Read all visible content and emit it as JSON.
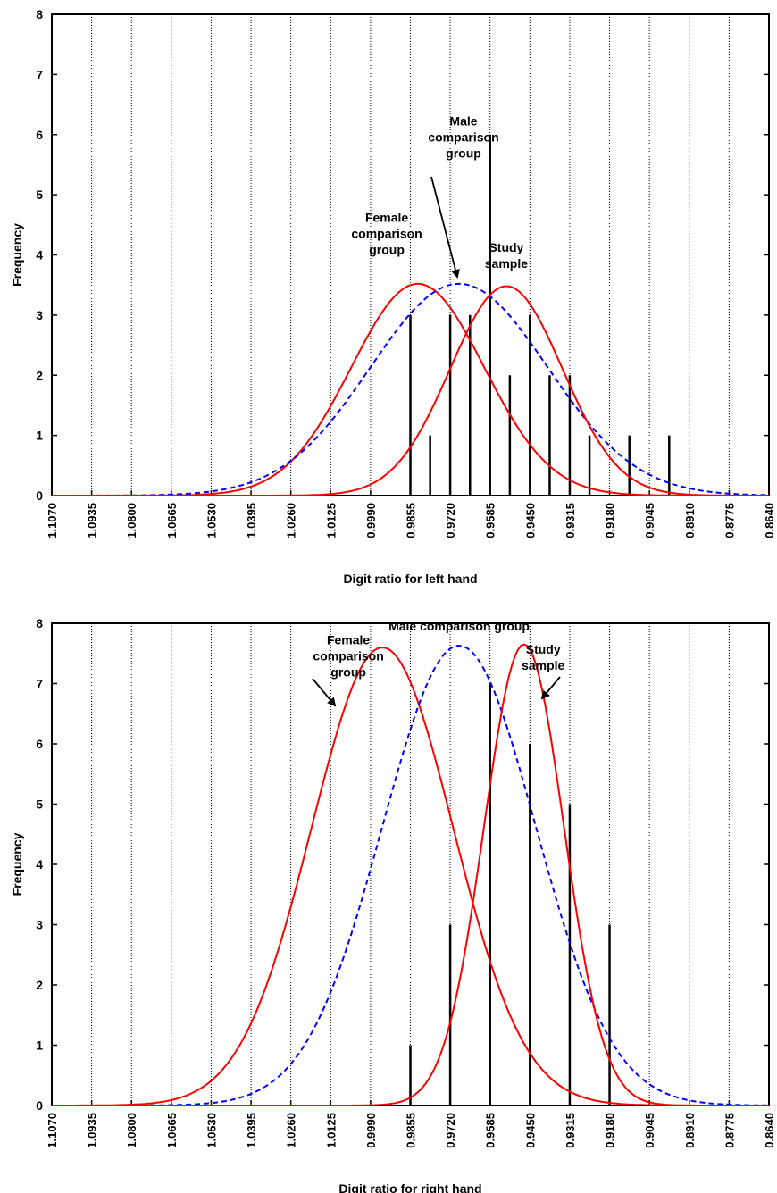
{
  "chart_data": [
    {
      "type": "bar",
      "panel": "left",
      "xlabel": "Digit ratio for left hand",
      "ylabel": "Frequency",
      "x_reversed": true,
      "xlim": [
        1.107,
        0.864
      ],
      "ylim": [
        0,
        8
      ],
      "yticks": [
        "0",
        "1",
        "2",
        "3",
        "4",
        "5",
        "6",
        "7",
        "8"
      ],
      "xtick_values": [
        1.107,
        1.0935,
        1.08,
        1.0665,
        1.053,
        1.0395,
        1.026,
        1.0125,
        0.999,
        0.9855,
        0.972,
        0.9585,
        0.945,
        0.9315,
        0.918,
        0.9045,
        0.891,
        0.8775,
        0.864
      ],
      "xtick_labels": [
        "1.1070",
        "1.0935",
        "1.0800",
        "1.0665",
        "1.0530",
        "1.0395",
        "1.0260",
        "1.0125",
        "0.9990",
        "0.9855",
        "0.9720",
        "0.9585",
        "0.9450",
        "0.9315",
        "0.9180",
        "0.9045",
        "0.8910",
        "0.8775",
        "0.8640"
      ],
      "grid_x": true,
      "bars": [
        {
          "x": 0.9855,
          "y": 3
        },
        {
          "x": 0.9788,
          "y": 1
        },
        {
          "x": 0.972,
          "y": 3
        },
        {
          "x": 0.9653,
          "y": 3
        },
        {
          "x": 0.9585,
          "y": 6
        },
        {
          "x": 0.9518,
          "y": 2
        },
        {
          "x": 0.945,
          "y": 3
        },
        {
          "x": 0.9383,
          "y": 2
        },
        {
          "x": 0.9315,
          "y": 2
        },
        {
          "x": 0.9248,
          "y": 1
        },
        {
          "x": 0.9113,
          "y": 1
        },
        {
          "x": 0.8978,
          "y": 1
        }
      ],
      "curves": [
        {
          "label": "Female comparison group",
          "color": "#ff0000",
          "style": "solid",
          "mean": 0.983,
          "sd": 0.0225,
          "peak": 3.52
        },
        {
          "label": "Male comparison group",
          "color": "#0000ff",
          "style": "dashed",
          "mean": 0.969,
          "sd": 0.03,
          "peak": 3.52
        },
        {
          "label": "Study sample",
          "color": "#ff0000",
          "style": "solid",
          "mean": 0.953,
          "sd": 0.019,
          "peak": 3.48
        }
      ],
      "annotations": [
        {
          "lines": [
            "Male",
            "comparison",
            "group"
          ],
          "x": 0.9675,
          "y": 6.15
        },
        {
          "lines": [
            "Female",
            "comparison",
            "group"
          ],
          "x": 0.9935,
          "y": 4.55
        },
        {
          "lines": [
            "Study",
            "sample"
          ],
          "x": 0.953,
          "y": 4.05
        }
      ]
    },
    {
      "type": "bar",
      "panel": "right",
      "xlabel": "Digit ratio for right hand",
      "ylabel": "Frequency",
      "x_reversed": true,
      "xlim": [
        1.107,
        0.864
      ],
      "ylim": [
        0,
        8
      ],
      "yticks": [
        "0",
        "1",
        "2",
        "3",
        "4",
        "5",
        "6",
        "7",
        "8"
      ],
      "xtick_values": [
        1.107,
        1.0935,
        1.08,
        1.0665,
        1.053,
        1.0395,
        1.026,
        1.0125,
        0.999,
        0.9855,
        0.972,
        0.9585,
        0.945,
        0.9315,
        0.918,
        0.9045,
        0.891,
        0.8775,
        0.864
      ],
      "xtick_labels": [
        "1.1070",
        "1.0935",
        "1.0800",
        "1.0665",
        "1.0530",
        "1.0395",
        "1.0260",
        "1.0125",
        "0.9990",
        "0.9855",
        "0.9720",
        "0.9585",
        "0.9450",
        "0.9315",
        "0.9180",
        "0.9045",
        "0.8910",
        "0.8775",
        "0.8640"
      ],
      "grid_x": true,
      "bars": [
        {
          "x": 0.9855,
          "y": 1
        },
        {
          "x": 0.972,
          "y": 3
        },
        {
          "x": 0.9585,
          "y": 7
        },
        {
          "x": 0.945,
          "y": 6
        },
        {
          "x": 0.9315,
          "y": 5
        },
        {
          "x": 0.918,
          "y": 3
        }
      ],
      "curves": [
        {
          "label": "Female comparison group",
          "color": "#ff0000",
          "style": "solid",
          "mean": 0.995,
          "sd": 0.024,
          "peak": 7.6
        },
        {
          "label": "Male comparison group",
          "color": "#0000ff",
          "style": "dashed",
          "mean": 0.969,
          "sd": 0.026,
          "peak": 7.63
        },
        {
          "label": "Study sample",
          "color": "#ff0000",
          "style": "solid",
          "mean": 0.947,
          "sd": 0.0135,
          "peak": 7.65
        }
      ],
      "annotations": [
        {
          "lines": [
            "Female",
            "comparison",
            "group"
          ],
          "x": 1.0065,
          "y": 7.65
        },
        {
          "lines": [
            "Male comparison group"
          ],
          "x": 0.969,
          "y": 7.88
        },
        {
          "lines": [
            "Study",
            "sample"
          ],
          "x": 0.9405,
          "y": 7.5
        }
      ]
    }
  ]
}
